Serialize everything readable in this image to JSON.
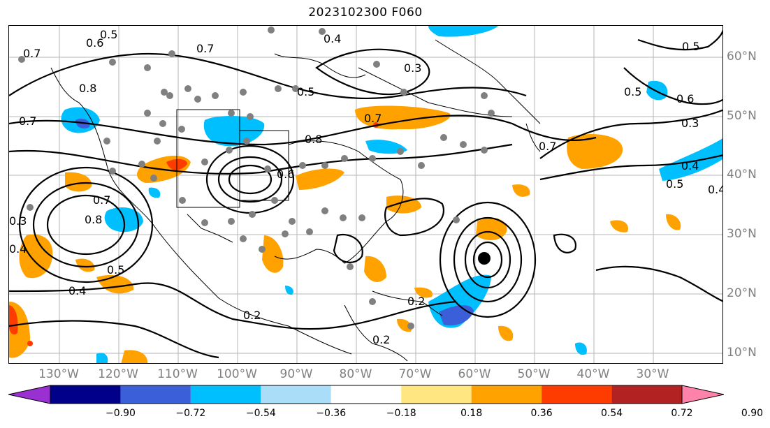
{
  "title": "2023102300 F060",
  "lon_labels": [
    "130°W",
    "120°W",
    "110°W",
    "100°W",
    "90°W",
    "80°W",
    "70°W",
    "60°W",
    "50°W",
    "40°W",
    "30°W"
  ],
  "lat_labels": [
    "60°N",
    "50°N",
    "40°N",
    "30°N",
    "20°N",
    "10°N"
  ],
  "colorbar": {
    "ticks": [
      "−0.90",
      "−0.72",
      "−0.54",
      "−0.36",
      "−0.18",
      "0.18",
      "0.36",
      "0.54",
      "0.72",
      "0.90"
    ],
    "colors": [
      "#9a2fd2",
      "#00008b",
      "#3b5fd8",
      "#00bfff",
      "#a9ddf8",
      "#ffffff",
      "#ffe680",
      "#ffa200",
      "#ff3c00",
      "#b22222",
      "#ff82aa"
    ]
  },
  "contour_labels": [
    "0.5",
    "0.6",
    "0.7",
    "0.4",
    "0.3",
    "0.5",
    "0.6",
    "0.5",
    "0.3",
    "0.7",
    "0.8",
    "0.7",
    "0.8",
    "0.7",
    "0.6",
    "0.5",
    "0.4",
    "0.3",
    "0.4",
    "0.2",
    "0.2",
    "0.7",
    "0.4",
    "0.5",
    "0.4",
    "0.7",
    "0.8",
    "0.5",
    "0.2"
  ],
  "colors": {
    "orange": "#ffa200",
    "blue": "#00bfff",
    "dark_blue": "#3b5fd8",
    "red": "#ff3c00",
    "dot": "#808080"
  }
}
